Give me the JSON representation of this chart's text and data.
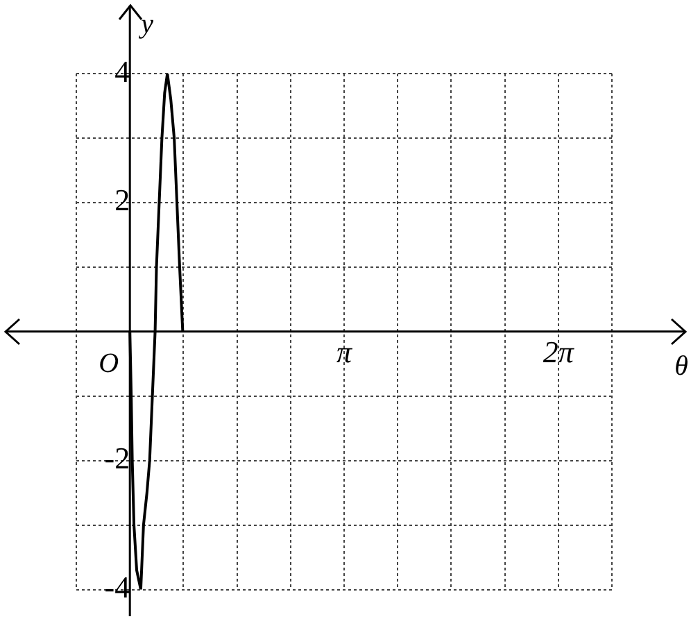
{
  "chart_data": {
    "type": "line",
    "xlabel": "θ",
    "ylabel": "y",
    "annotations": [
      "O"
    ],
    "series": [
      {
        "color": "#000000",
        "x": [
          0,
          0.02,
          0.035,
          0.06,
          0.1,
          0.16,
          0.2,
          0.25,
          0.29,
          0.33,
          0.37,
          0.39,
          0.43,
          0.47,
          0.51,
          0.55,
          0.6,
          0.65,
          0.69,
          0.73,
          0.775
        ],
        "values": [
          0,
          -1,
          -2,
          -3,
          -3.7,
          -4,
          -3,
          -2.5,
          -2,
          -1,
          0,
          1,
          2,
          3,
          3.7,
          4,
          3.6,
          3,
          2,
          1,
          0
        ]
      }
    ],
    "xlim": [
      -0.7854,
      7.0686
    ],
    "xticks": [
      {
        "value": -0.7854,
        "label": null
      },
      {
        "value": 0,
        "label": null
      },
      {
        "value": 0.7854,
        "label": null
      },
      {
        "value": 1.5708,
        "label": null
      },
      {
        "value": 2.3562,
        "label": null
      },
      {
        "value": 3.1416,
        "label": "π"
      },
      {
        "value": 3.927,
        "label": null
      },
      {
        "value": 4.7124,
        "label": null
      },
      {
        "value": 5.4978,
        "label": null
      },
      {
        "value": 6.2832,
        "label": "2π"
      },
      {
        "value": 7.0686,
        "label": null
      }
    ],
    "ylim": [
      -4,
      4
    ],
    "yticks": [
      {
        "value": -4,
        "label": "-4"
      },
      {
        "value": -3,
        "label": null
      },
      {
        "value": -2,
        "label": "-2"
      },
      {
        "value": -1,
        "label": null
      },
      {
        "value": 0,
        "label": null
      },
      {
        "value": 1,
        "label": null
      },
      {
        "value": 2,
        "label": "2"
      },
      {
        "value": 3,
        "label": null
      },
      {
        "value": 4,
        "label": "4"
      }
    ],
    "grid": true,
    "marker": "none",
    "line_style": "solid"
  }
}
